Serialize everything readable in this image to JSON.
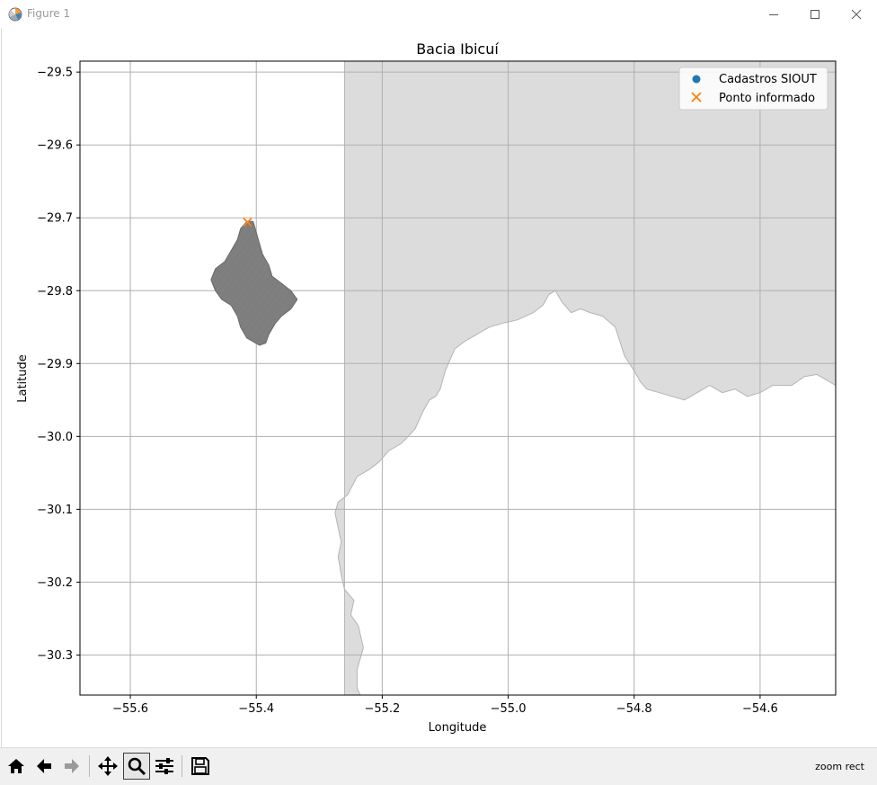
{
  "window": {
    "title": "Figure 1",
    "controls": [
      "minimize",
      "maximize",
      "close"
    ]
  },
  "chart_data": {
    "type": "scatter",
    "title": "Bacia Ibicuí",
    "xlabel": "Longitude",
    "ylabel": "Latitude",
    "xlim": [
      -55.68,
      -54.48
    ],
    "ylim": [
      -30.355,
      -29.485
    ],
    "x_ticks": [
      -55.6,
      -55.4,
      -55.2,
      -55.0,
      -54.8,
      -54.6
    ],
    "x_tick_labels": [
      "−55.6",
      "−55.4",
      "−55.2",
      "−55.0",
      "−54.8",
      "−54.6"
    ],
    "y_ticks": [
      -29.5,
      -29.6,
      -29.7,
      -29.8,
      -29.9,
      -30.0,
      -30.1,
      -30.2,
      -30.3
    ],
    "y_tick_labels": [
      "−29.5",
      "−29.6",
      "−29.7",
      "−29.8",
      "−29.9",
      "−30.0",
      "−30.1",
      "−30.2",
      "−30.3"
    ],
    "grid": true,
    "legend_position": "top-right",
    "legend": [
      {
        "label": "Cadastros SIOUT",
        "marker": "circle",
        "color": "#1f77b4"
      },
      {
        "label": "Ponto informado",
        "marker": "x",
        "color": "#ff7f0e"
      }
    ],
    "series": [
      {
        "name": "Ponto informado",
        "marker": "x",
        "color": "#ff7f0e",
        "x": [
          -55.414
        ],
        "y": [
          -29.706
        ]
      },
      {
        "name": "Cadastros SIOUT",
        "marker": "circle",
        "color": "#1f77b4",
        "x": [],
        "y": []
      }
    ],
    "background_region_color": "#dcdcdc",
    "background_region_edge": "#b4b4b4",
    "open_area_color": "#ffffff",
    "basin_color": "#7f7f7f",
    "background_region_outline": [
      [
        -55.26,
        -29.485
      ],
      [
        -54.48,
        -29.485
      ],
      [
        -54.48,
        -29.93
      ],
      [
        -54.51,
        -29.915
      ],
      [
        -54.53,
        -29.918
      ],
      [
        -54.55,
        -29.93
      ],
      [
        -54.58,
        -29.93
      ],
      [
        -54.6,
        -29.94
      ],
      [
        -54.62,
        -29.945
      ],
      [
        -54.64,
        -29.935
      ],
      [
        -54.66,
        -29.94
      ],
      [
        -54.68,
        -29.93
      ],
      [
        -54.7,
        -29.94
      ],
      [
        -54.72,
        -29.95
      ],
      [
        -54.74,
        -29.945
      ],
      [
        -54.76,
        -29.94
      ],
      [
        -54.78,
        -29.935
      ],
      [
        -54.79,
        -29.925
      ],
      [
        -54.8,
        -29.91
      ],
      [
        -54.815,
        -29.89
      ],
      [
        -54.83,
        -29.85
      ],
      [
        -54.85,
        -29.835
      ],
      [
        -54.87,
        -29.83
      ],
      [
        -54.885,
        -29.825
      ],
      [
        -54.9,
        -29.83
      ],
      [
        -54.915,
        -29.815
      ],
      [
        -54.925,
        -29.8
      ],
      [
        -54.935,
        -29.805
      ],
      [
        -54.945,
        -29.82
      ],
      [
        -54.96,
        -29.83
      ],
      [
        -54.985,
        -29.84
      ],
      [
        -55.01,
        -29.845
      ],
      [
        -55.03,
        -29.85
      ],
      [
        -55.05,
        -29.86
      ],
      [
        -55.07,
        -29.87
      ],
      [
        -55.085,
        -29.88
      ],
      [
        -55.1,
        -29.91
      ],
      [
        -55.108,
        -29.935
      ],
      [
        -55.115,
        -29.945
      ],
      [
        -55.125,
        -29.95
      ],
      [
        -55.135,
        -29.965
      ],
      [
        -55.148,
        -29.99
      ],
      [
        -55.17,
        -30.01
      ],
      [
        -55.19,
        -30.02
      ],
      [
        -55.205,
        -30.035
      ],
      [
        -55.22,
        -30.045
      ],
      [
        -55.24,
        -30.055
      ],
      [
        -55.255,
        -30.08
      ],
      [
        -55.27,
        -30.09
      ],
      [
        -55.275,
        -30.105
      ],
      [
        -55.27,
        -30.125
      ],
      [
        -55.265,
        -30.145
      ],
      [
        -55.27,
        -30.165
      ],
      [
        -55.265,
        -30.19
      ],
      [
        -55.26,
        -30.21
      ],
      [
        -55.245,
        -30.225
      ],
      [
        -55.25,
        -30.245
      ],
      [
        -55.238,
        -30.26
      ],
      [
        -55.23,
        -30.29
      ],
      [
        -55.24,
        -30.32
      ],
      [
        -55.24,
        -30.345
      ],
      [
        -55.235,
        -30.355
      ],
      [
        -55.26,
        -30.355
      ]
    ],
    "basin_outline": [
      [
        -55.415,
        -29.705
      ],
      [
        -55.405,
        -29.705
      ],
      [
        -55.4,
        -29.72
      ],
      [
        -55.395,
        -29.735
      ],
      [
        -55.39,
        -29.75
      ],
      [
        -55.38,
        -29.765
      ],
      [
        -55.375,
        -29.78
      ],
      [
        -55.36,
        -29.79
      ],
      [
        -55.345,
        -29.8
      ],
      [
        -55.335,
        -29.812
      ],
      [
        -55.345,
        -29.825
      ],
      [
        -55.36,
        -29.835
      ],
      [
        -55.37,
        -29.845
      ],
      [
        -55.38,
        -29.86
      ],
      [
        -55.385,
        -29.872
      ],
      [
        -55.395,
        -29.875
      ],
      [
        -55.405,
        -29.87
      ],
      [
        -55.415,
        -29.865
      ],
      [
        -55.425,
        -29.85
      ],
      [
        -55.43,
        -29.835
      ],
      [
        -55.44,
        -29.82
      ],
      [
        -55.455,
        -29.812
      ],
      [
        -55.465,
        -29.8
      ],
      [
        -55.472,
        -29.785
      ],
      [
        -55.465,
        -29.77
      ],
      [
        -55.45,
        -29.76
      ],
      [
        -55.44,
        -29.745
      ],
      [
        -55.43,
        -29.73
      ],
      [
        -55.425,
        -29.715
      ]
    ]
  },
  "toolbar": {
    "buttons": [
      {
        "name": "home",
        "tooltip": "Home"
      },
      {
        "name": "back",
        "tooltip": "Back"
      },
      {
        "name": "forward",
        "tooltip": "Forward"
      },
      {
        "name": "pan",
        "tooltip": "Pan"
      },
      {
        "name": "zoom",
        "tooltip": "Zoom",
        "active": true
      },
      {
        "name": "configure-subplots",
        "tooltip": "Subplots"
      },
      {
        "name": "save",
        "tooltip": "Save"
      }
    ],
    "status": "zoom rect"
  }
}
